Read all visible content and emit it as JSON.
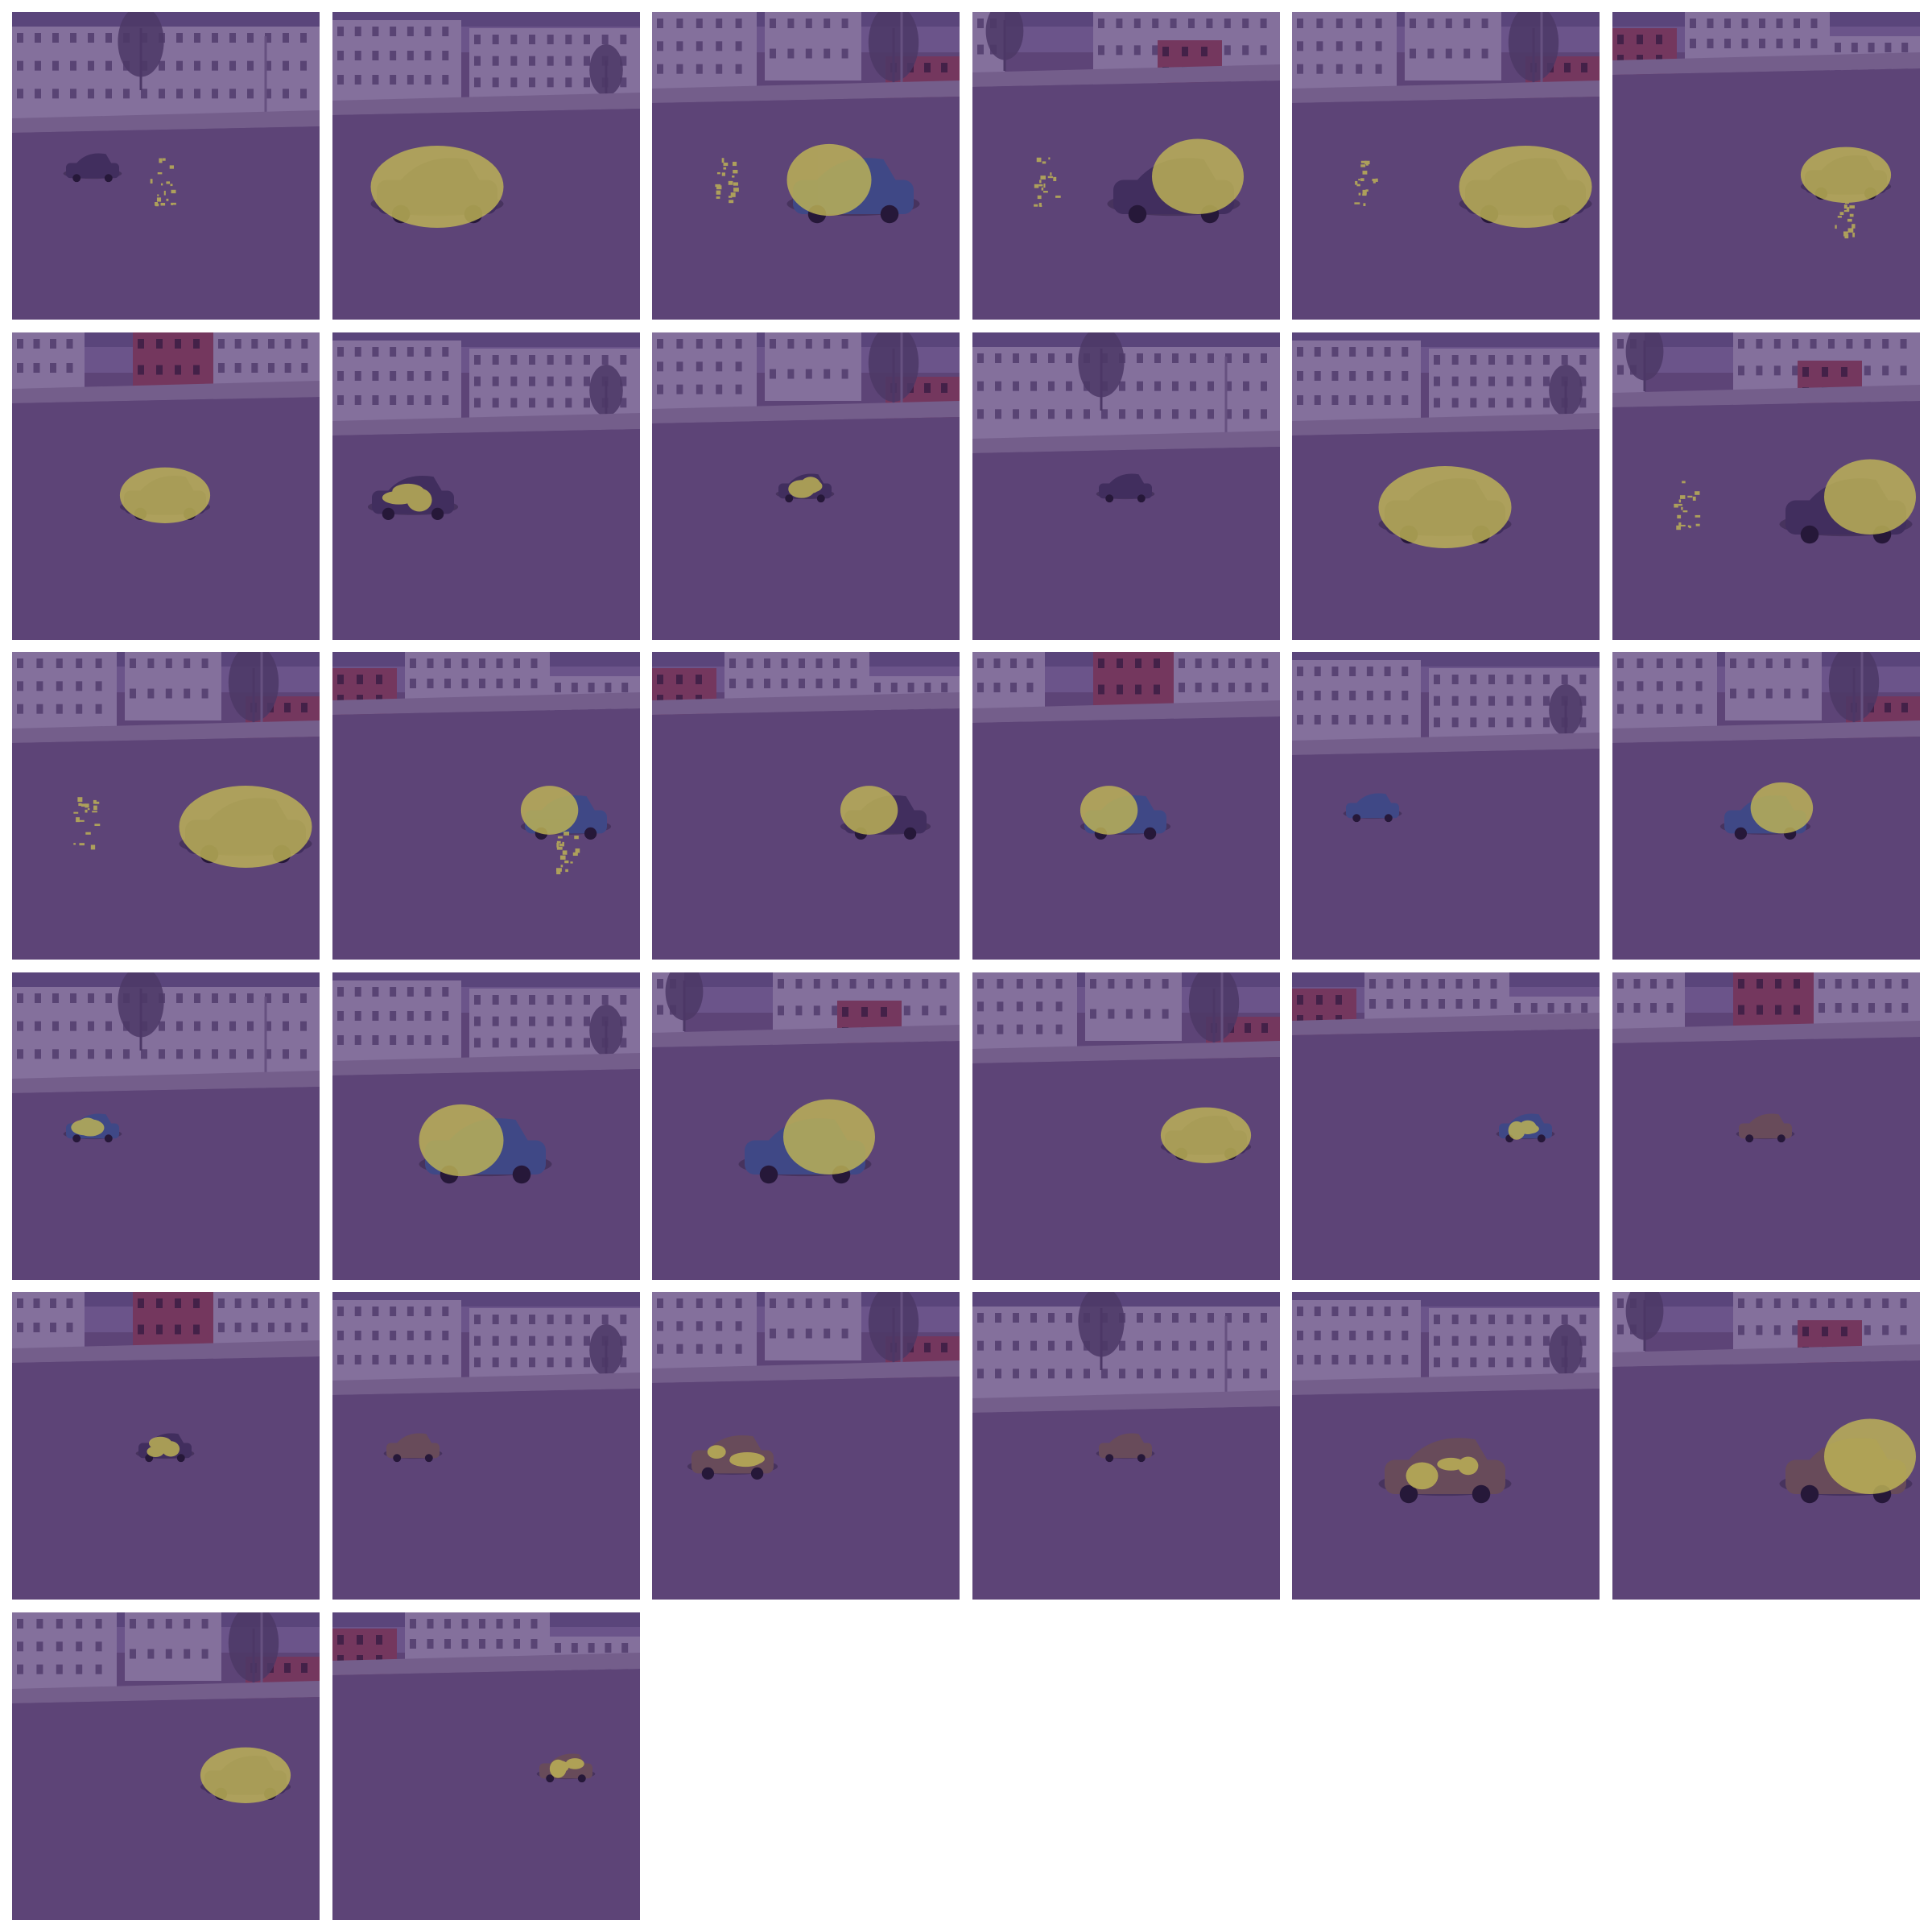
{
  "figure": {
    "columns": 6,
    "tile_count": 32,
    "colors": {
      "background": "#ffffff",
      "sky": "#6f5d8a",
      "sky_dark": "#4e3f6c",
      "building": "#8e7fa0",
      "building_window": "#5a4a70",
      "brick": "#7a3a55",
      "brick_window": "#3f1f3a",
      "sidewalk": "#7b6a8c",
      "road": "#5f4a73",
      "tree": "#4a3b5e",
      "pole": "#6a5a7e",
      "car_dark": "#3c2f55",
      "car_blue": "#3a4f86",
      "car_brown": "#6c5250",
      "heatmap": "#d6d34a"
    },
    "tiles": [
      {
        "scene": "street-a",
        "car": "dark",
        "car_pos": "left",
        "car_size": "small",
        "heat": "none",
        "speckle": "center"
      },
      {
        "scene": "street-b",
        "car": "dark",
        "car_pos": "left-center",
        "car_size": "large",
        "heat": "full",
        "speckle": "none"
      },
      {
        "scene": "street-c",
        "car": "blue",
        "car_pos": "center-right",
        "car_size": "large",
        "heat": "front",
        "speckle": "left"
      },
      {
        "scene": "street-d",
        "car": "dark",
        "car_pos": "center-right",
        "car_size": "large",
        "heat": "rear",
        "speckle": "left"
      },
      {
        "scene": "street-c",
        "car": "dark",
        "car_pos": "right",
        "car_size": "large",
        "heat": "full",
        "speckle": "left"
      },
      {
        "scene": "street-e",
        "car": "dark",
        "car_pos": "right",
        "car_size": "medium",
        "heat": "full",
        "speckle": "below"
      },
      {
        "scene": "street-f",
        "car": "dark",
        "car_pos": "center",
        "car_size": "medium",
        "heat": "full",
        "speckle": "none"
      },
      {
        "scene": "street-b",
        "car": "dark",
        "car_pos": "left",
        "car_size": "medium",
        "heat": "partial",
        "speckle": "none"
      },
      {
        "scene": "street-c",
        "car": "dark",
        "car_pos": "center",
        "car_size": "small",
        "heat": "partial",
        "speckle": "none"
      },
      {
        "scene": "street-a",
        "car": "dark",
        "car_pos": "center",
        "car_size": "small",
        "heat": "none",
        "speckle": "none"
      },
      {
        "scene": "street-b",
        "car": "dark",
        "car_pos": "center",
        "car_size": "large",
        "heat": "full",
        "speckle": "none"
      },
      {
        "scene": "street-d",
        "car": "dark",
        "car_pos": "right",
        "car_size": "large",
        "heat": "rear",
        "speckle": "left"
      },
      {
        "scene": "street-c",
        "car": "dark",
        "car_pos": "right",
        "car_size": "large",
        "heat": "full",
        "speckle": "left"
      },
      {
        "scene": "street-e",
        "car": "blue",
        "car_pos": "right",
        "car_size": "medium",
        "heat": "front",
        "speckle": "below"
      },
      {
        "scene": "street-e",
        "car": "dark",
        "car_pos": "right",
        "car_size": "medium",
        "heat": "front",
        "speckle": "none"
      },
      {
        "scene": "street-f",
        "car": "blue",
        "car_pos": "center",
        "car_size": "medium",
        "heat": "front",
        "speckle": "none"
      },
      {
        "scene": "street-b",
        "car": "blue",
        "car_pos": "left",
        "car_size": "small",
        "heat": "none",
        "speckle": "none"
      },
      {
        "scene": "street-c",
        "car": "blue",
        "car_pos": "center",
        "car_size": "medium",
        "heat": "rear",
        "speckle": "none"
      },
      {
        "scene": "street-a",
        "car": "blue",
        "car_pos": "left",
        "car_size": "small",
        "heat": "partial",
        "speckle": "none"
      },
      {
        "scene": "street-b",
        "car": "blue",
        "car_pos": "center",
        "car_size": "large",
        "heat": "front",
        "speckle": "none"
      },
      {
        "scene": "street-d",
        "car": "blue",
        "car_pos": "center",
        "car_size": "large",
        "heat": "rear",
        "speckle": "none"
      },
      {
        "scene": "street-c",
        "car": "dark",
        "car_pos": "right",
        "car_size": "medium",
        "heat": "full",
        "speckle": "none"
      },
      {
        "scene": "street-e",
        "car": "blue",
        "car_pos": "right",
        "car_size": "small",
        "heat": "partial",
        "speckle": "none"
      },
      {
        "scene": "street-f",
        "car": "brown",
        "car_pos": "center",
        "car_size": "small",
        "heat": "none",
        "speckle": "none"
      },
      {
        "scene": "street-f",
        "car": "dark",
        "car_pos": "center",
        "car_size": "small",
        "heat": "partial",
        "speckle": "none"
      },
      {
        "scene": "street-b",
        "car": "brown",
        "car_pos": "left",
        "car_size": "small",
        "heat": "none",
        "speckle": "none"
      },
      {
        "scene": "street-c",
        "car": "brown",
        "car_pos": "left",
        "car_size": "medium",
        "heat": "partial",
        "speckle": "none"
      },
      {
        "scene": "street-a",
        "car": "brown",
        "car_pos": "center",
        "car_size": "small",
        "heat": "none",
        "speckle": "none"
      },
      {
        "scene": "street-b",
        "car": "brown",
        "car_pos": "center",
        "car_size": "large",
        "heat": "partial",
        "speckle": "none"
      },
      {
        "scene": "street-d",
        "car": "brown",
        "car_pos": "right",
        "car_size": "large",
        "heat": "rear",
        "speckle": "none"
      },
      {
        "scene": "street-c",
        "car": "dark",
        "car_pos": "right",
        "car_size": "medium",
        "heat": "full",
        "speckle": "none"
      },
      {
        "scene": "street-e",
        "car": "brown",
        "car_pos": "right",
        "car_size": "small",
        "heat": "partial",
        "speckle": "none"
      }
    ]
  }
}
